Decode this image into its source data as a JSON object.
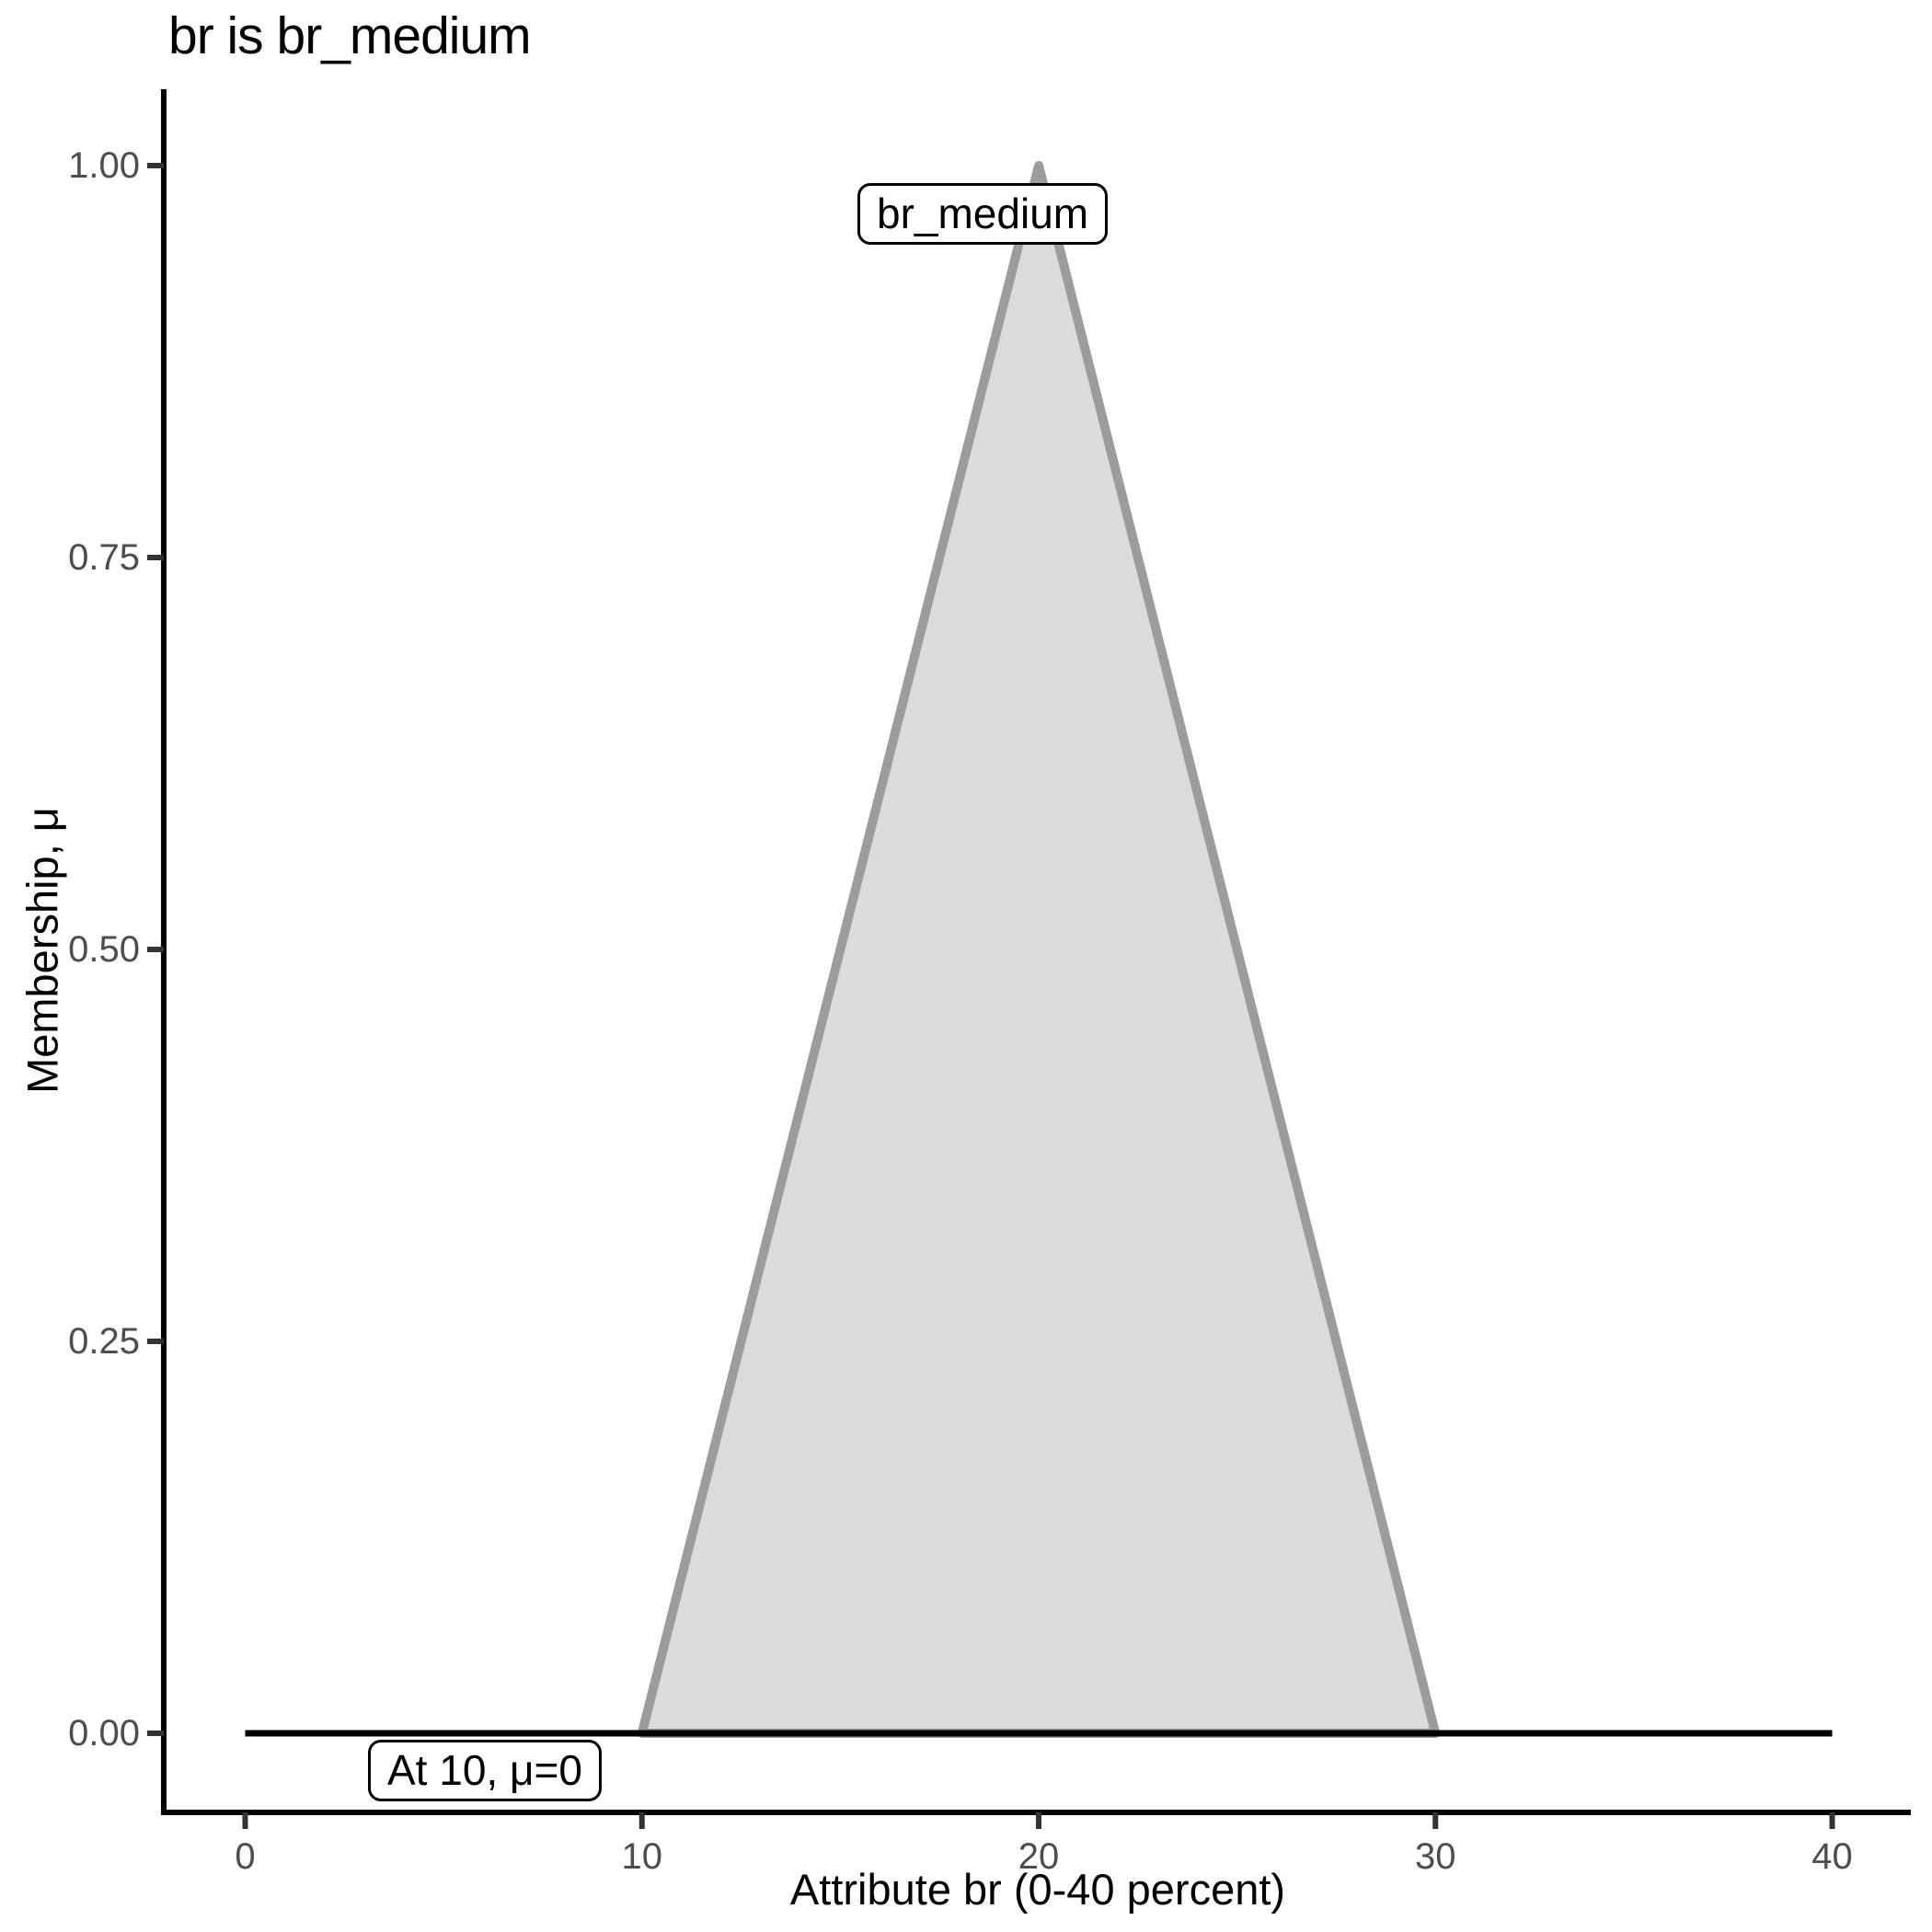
{
  "title": "br is br_medium",
  "chart_data": {
    "type": "area",
    "title": "br is br_medium",
    "xlabel": "Attribute br (0-40 percent)",
    "ylabel": "Membership, μ",
    "xlim": [
      0,
      40
    ],
    "ylim": [
      0,
      1
    ],
    "grid": false,
    "x_ticks": [
      {
        "value": 0,
        "label": "0"
      },
      {
        "value": 10,
        "label": "10"
      },
      {
        "value": 20,
        "label": "20"
      },
      {
        "value": 30,
        "label": "30"
      },
      {
        "value": 40,
        "label": "40"
      }
    ],
    "y_ticks": [
      {
        "value": 0.0,
        "label": "0.00"
      },
      {
        "value": 0.25,
        "label": "0.25"
      },
      {
        "value": 0.5,
        "label": "0.50"
      },
      {
        "value": 0.75,
        "label": "0.75"
      },
      {
        "value": 1.0,
        "label": "1.00"
      }
    ],
    "series": [
      {
        "name": "br_medium",
        "x": [
          0,
          10,
          20,
          30,
          40
        ],
        "y": [
          0,
          0,
          1,
          0,
          0
        ]
      }
    ],
    "membership_function": {
      "shape": "triangle",
      "left": 10,
      "peak": 20,
      "right": 30,
      "peak_mu": 1
    },
    "baseline": {
      "mu": 0,
      "x_start": 0,
      "x_end": 40
    },
    "annotations": [
      {
        "text": "br_medium"
      },
      {
        "text": "At 10, μ=0"
      }
    ],
    "colors": {
      "area_fill": "#dbdbdb",
      "area_stroke": "#9c9c9c",
      "baseline": "#000000",
      "axis_line": "#000000",
      "tick_mark": "#333333",
      "tick_label": "#4d4d4d",
      "annotation_border": "#000000",
      "annotation_bg": "#ffffff",
      "title_color": "#000000"
    }
  }
}
